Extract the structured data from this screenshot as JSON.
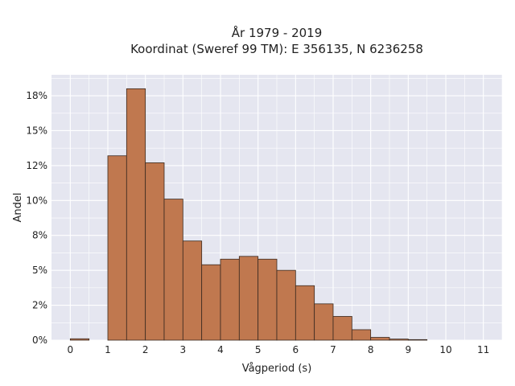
{
  "chart_data": {
    "type": "bar",
    "title": "År 1979 - 2019",
    "subtitle": "Koordinat (Sweref 99 TM): E 356135, N 6236258",
    "xlabel": "Vågperiod (s)",
    "ylabel": "Andel",
    "x_ticks": [
      "0",
      "1",
      "2",
      "3",
      "4",
      "5",
      "6",
      "7",
      "8",
      "9",
      "10",
      "11"
    ],
    "y_ticks": [
      "0%",
      "2%",
      "5%",
      "8%",
      "10%",
      "12%",
      "15%",
      "18%"
    ],
    "y_tick_values": [
      0,
      2.5,
      5,
      7.5,
      10,
      12.5,
      15,
      17.5
    ],
    "xlim": [
      -0.5,
      11.5
    ],
    "ylim": [
      0,
      19
    ],
    "grid": true,
    "bar_color": "#c0784f",
    "bar_edge_color": "#3a2a20",
    "background_color": "#e5e6f0",
    "bin_width": 0.5,
    "bin_starts": [
      0,
      1,
      1.5,
      2,
      2.5,
      3,
      3.5,
      4,
      4.5,
      5,
      5.5,
      6,
      6.5,
      7,
      7.5,
      8,
      8.5,
      9
    ],
    "values": [
      0.1,
      13.2,
      18.0,
      12.7,
      10.1,
      7.1,
      5.4,
      5.8,
      6.0,
      5.8,
      5.0,
      3.9,
      2.6,
      1.7,
      0.75,
      0.2,
      0.08,
      0.04
    ]
  }
}
